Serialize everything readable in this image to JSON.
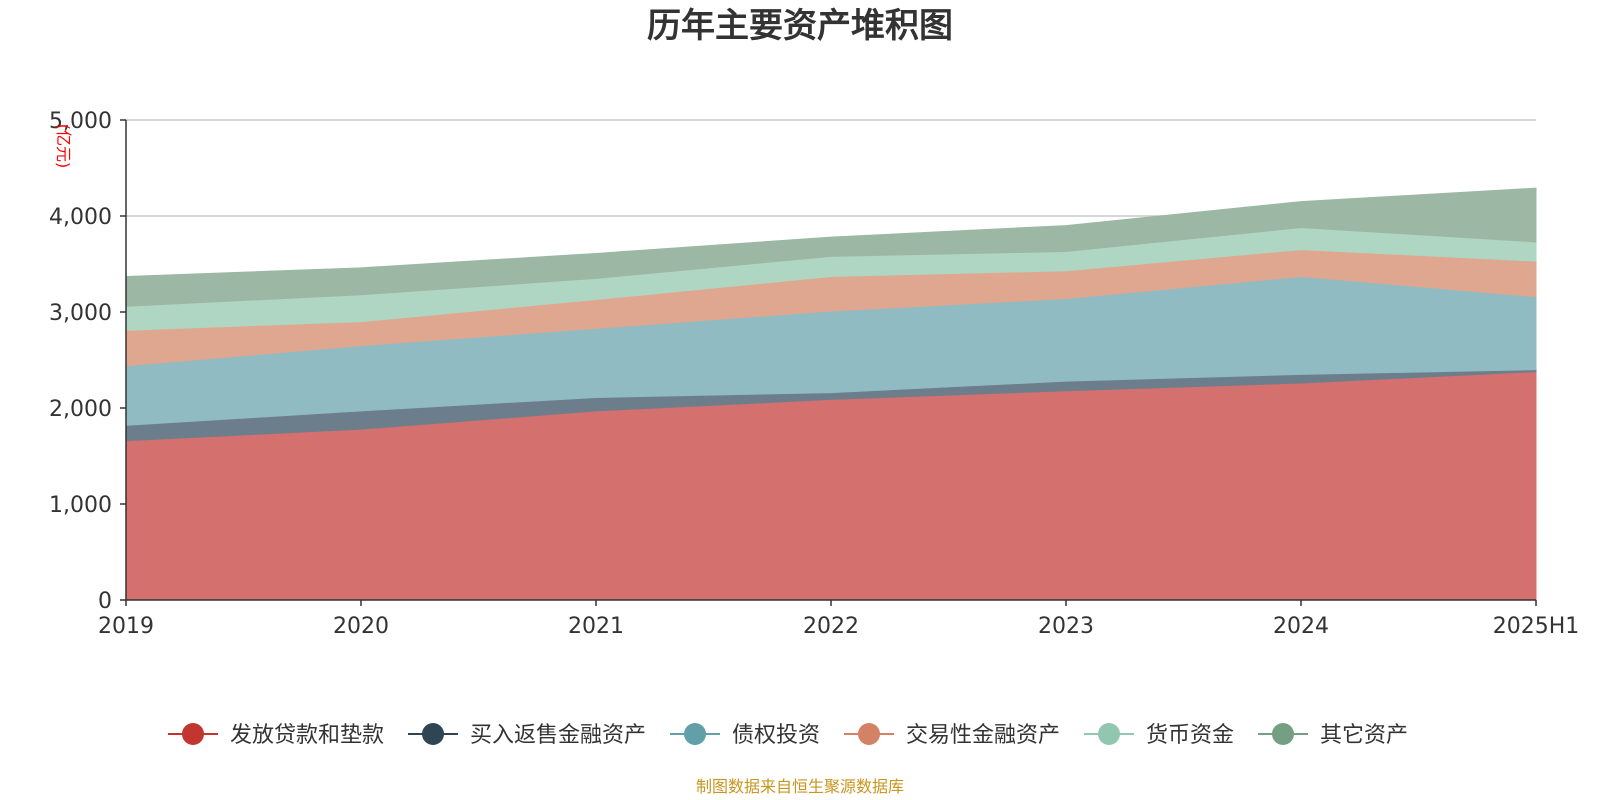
{
  "chart_data": {
    "type": "area",
    "stacked": true,
    "title": "历年主要资产堆积图",
    "unit": "(亿元)",
    "categories": [
      "2019",
      "2020",
      "2021",
      "2022",
      "2023",
      "2024",
      "2025H1"
    ],
    "ylim": [
      0,
      5000
    ],
    "yticks": [
      "0",
      "1,000",
      "2,000",
      "3,000",
      "4,000",
      "5,000"
    ],
    "ytick_values": [
      0,
      1000,
      2000,
      3000,
      4000,
      5000
    ],
    "grid": true,
    "legend_position": "bottom",
    "series": [
      {
        "name": "发放贷款和垫款",
        "color": "#c23531",
        "fill": "#d4706e",
        "values": [
          1660,
          1780,
          1970,
          2090,
          2180,
          2260,
          2380
        ]
      },
      {
        "name": "买入返售金融资产",
        "color": "#2f4554",
        "fill": "#6c7e8b",
        "values": [
          160,
          190,
          140,
          70,
          100,
          90,
          20
        ]
      },
      {
        "name": "债权投资",
        "color": "#61a0a8",
        "fill": "#90bbc2",
        "values": [
          620,
          680,
          720,
          850,
          860,
          1020,
          760
        ]
      },
      {
        "name": "交易性金融资产",
        "color": "#d48265",
        "fill": "#dfa78f",
        "values": [
          370,
          250,
          300,
          360,
          290,
          280,
          370
        ]
      },
      {
        "name": "货币资金",
        "color": "#91c7ae",
        "fill": "#afd6c2",
        "values": [
          250,
          280,
          220,
          210,
          200,
          230,
          200
        ]
      },
      {
        "name": "其它资产",
        "color": "#749f83",
        "fill": "#9cb8a4",
        "values": [
          310,
          280,
          260,
          200,
          270,
          270,
          560
        ]
      }
    ]
  },
  "source": "制图数据来自恒生聚源数据库"
}
